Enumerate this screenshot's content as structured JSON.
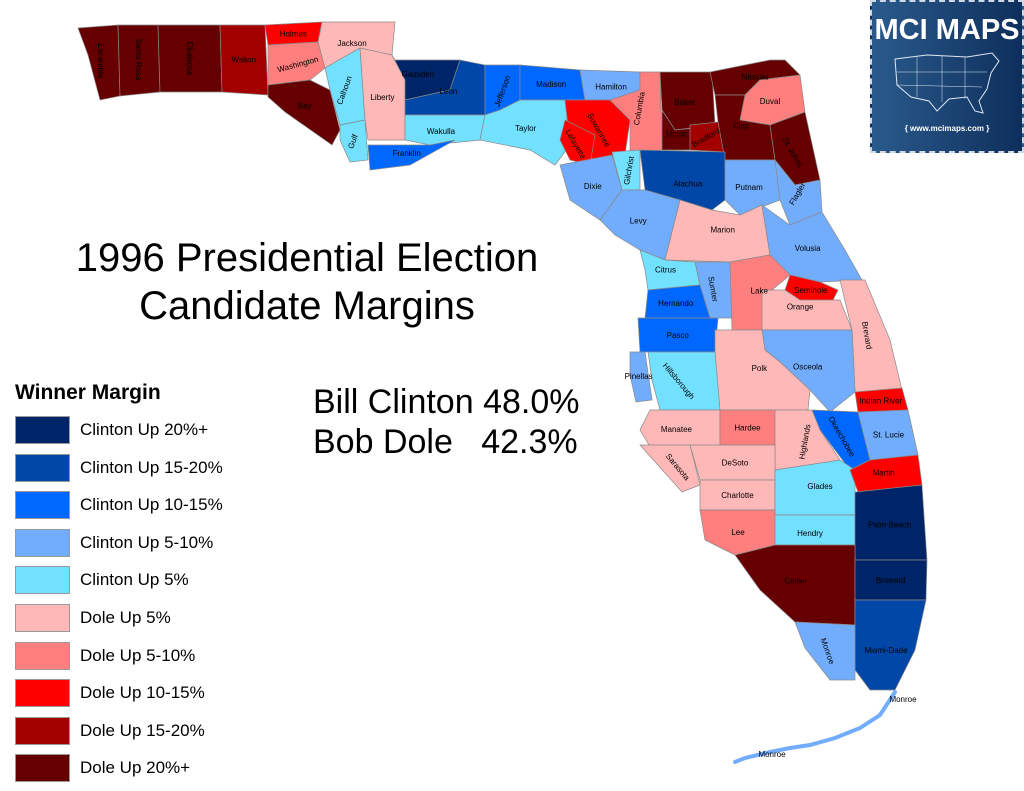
{
  "title": {
    "line1": "1996 Presidential Election",
    "line2": "Candidate Margins"
  },
  "results": [
    {
      "candidate": "Bill Clinton",
      "percent": "48.0%"
    },
    {
      "candidate": "Bob Dole",
      "percent": "42.3%"
    }
  ],
  "logo": {
    "title": "MCI MAPS",
    "url": "{ www.mcimaps.com }"
  },
  "legend": {
    "title": "Winner Margin",
    "items": [
      {
        "key": "C20",
        "label": "Clinton Up 20%+",
        "color": "#002468"
      },
      {
        "key": "C15",
        "label": "Clinton Up 15-20%",
        "color": "#0047a8"
      },
      {
        "key": "C10",
        "label": "Clinton Up 10-15%",
        "color": "#0068ff"
      },
      {
        "key": "C5",
        "label": "Clinton Up 5-10%",
        "color": "#72adfd"
      },
      {
        "key": "C0",
        "label": "Clinton Up 5%",
        "color": "#72e0ff"
      },
      {
        "key": "D0",
        "label": "Dole Up 5%",
        "color": "#ffb8b8"
      },
      {
        "key": "D5",
        "label": "Dole Up 5-10%",
        "color": "#ff7f7f"
      },
      {
        "key": "D10",
        "label": "Dole Up 10-15%",
        "color": "#ff0000"
      },
      {
        "key": "D15",
        "label": "Dole Up 15-20%",
        "color": "#a30000"
      },
      {
        "key": "D20",
        "label": "Dole Up 20%+",
        "color": "#660000"
      }
    ]
  },
  "counties": [
    {
      "name": "Escambia",
      "margin": "D20"
    },
    {
      "name": "Santa Rosa",
      "margin": "D20"
    },
    {
      "name": "Okaloosa",
      "margin": "D20"
    },
    {
      "name": "Walton",
      "margin": "D15"
    },
    {
      "name": "Holmes",
      "margin": "D10"
    },
    {
      "name": "Washington",
      "margin": "D5"
    },
    {
      "name": "Jackson",
      "margin": "D0"
    },
    {
      "name": "Bay",
      "margin": "D20"
    },
    {
      "name": "Calhoun",
      "margin": "C0"
    },
    {
      "name": "Gulf",
      "margin": "C0"
    },
    {
      "name": "Liberty",
      "margin": "D0"
    },
    {
      "name": "Gadsden",
      "margin": "C20"
    },
    {
      "name": "Leon",
      "margin": "C15"
    },
    {
      "name": "Wakulla",
      "margin": "C0"
    },
    {
      "name": "Franklin",
      "margin": "C10"
    },
    {
      "name": "Jefferson",
      "margin": "C10"
    },
    {
      "name": "Madison",
      "margin": "C10"
    },
    {
      "name": "Hamilton",
      "margin": "C5"
    },
    {
      "name": "Taylor",
      "margin": "C0"
    },
    {
      "name": "Suwannee",
      "margin": "D10"
    },
    {
      "name": "Lafayette",
      "margin": "D10"
    },
    {
      "name": "Columbia",
      "margin": "D5"
    },
    {
      "name": "Baker",
      "margin": "D20"
    },
    {
      "name": "Union",
      "margin": "D20"
    },
    {
      "name": "Bradford",
      "margin": "D15"
    },
    {
      "name": "Nassau",
      "margin": "D20"
    },
    {
      "name": "Duval",
      "margin": "D5"
    },
    {
      "name": "Clay",
      "margin": "D20"
    },
    {
      "name": "St. Johns",
      "margin": "D20"
    },
    {
      "name": "Gilchrist",
      "margin": "C0"
    },
    {
      "name": "Dixie",
      "margin": "C5"
    },
    {
      "name": "Alachua",
      "margin": "C15"
    },
    {
      "name": "Putnam",
      "margin": "C5"
    },
    {
      "name": "Flagler",
      "margin": "C5"
    },
    {
      "name": "Levy",
      "margin": "C5"
    },
    {
      "name": "Marion",
      "margin": "D0"
    },
    {
      "name": "Volusia",
      "margin": "C5"
    },
    {
      "name": "Citrus",
      "margin": "C0"
    },
    {
      "name": "Sumter",
      "margin": "C5"
    },
    {
      "name": "Lake",
      "margin": "D5"
    },
    {
      "name": "Seminole",
      "margin": "D10"
    },
    {
      "name": "Hernando",
      "margin": "C10"
    },
    {
      "name": "Pasco",
      "margin": "C10"
    },
    {
      "name": "Orange",
      "margin": "D0"
    },
    {
      "name": "Brevard",
      "margin": "D0"
    },
    {
      "name": "Osceola",
      "margin": "C5"
    },
    {
      "name": "Polk",
      "margin": "D0"
    },
    {
      "name": "Hillsborough",
      "margin": "C0"
    },
    {
      "name": "Pinellas",
      "margin": "C5"
    },
    {
      "name": "Indian River",
      "margin": "D10"
    },
    {
      "name": "Okeechobee",
      "margin": "C10"
    },
    {
      "name": "St. Lucie",
      "margin": "C5"
    },
    {
      "name": "Manatee",
      "margin": "D0"
    },
    {
      "name": "Hardee",
      "margin": "D5"
    },
    {
      "name": "Highlands",
      "margin": "D0"
    },
    {
      "name": "Sarasota",
      "margin": "D0"
    },
    {
      "name": "DeSoto",
      "margin": "D0"
    },
    {
      "name": "Charlotte",
      "margin": "D0"
    },
    {
      "name": "Glades",
      "margin": "C0"
    },
    {
      "name": "Martin",
      "margin": "D10"
    },
    {
      "name": "Lee",
      "margin": "D5"
    },
    {
      "name": "Hendry",
      "margin": "C0"
    },
    {
      "name": "Palm Beach",
      "margin": "C20"
    },
    {
      "name": "Collier",
      "margin": "D20"
    },
    {
      "name": "Broward",
      "margin": "C20"
    },
    {
      "name": "Miami-Dade",
      "margin": "C15"
    },
    {
      "name": "Monroe",
      "margin": "C5"
    }
  ]
}
